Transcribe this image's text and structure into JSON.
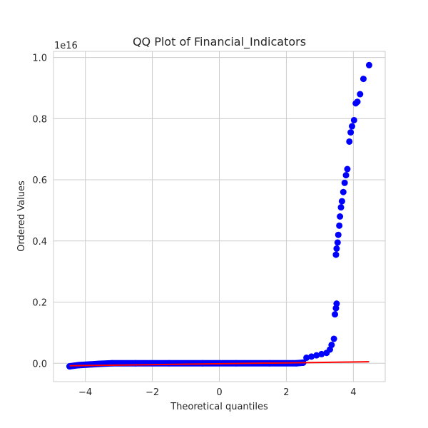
{
  "chart_data": {
    "type": "scatter",
    "title": "QQ Plot of Financial_Indicators",
    "xlabel": "Theoretical quantiles",
    "ylabel": "Ordered Values",
    "y_offset_label": "1e16",
    "xlim": [
      -4.95,
      4.95
    ],
    "ylim": [
      -0.06,
      1.02
    ],
    "x_ticks": [
      -4,
      -2,
      0,
      2,
      4
    ],
    "x_tick_labels": [
      "−4",
      "−2",
      "0",
      "2",
      "4"
    ],
    "y_ticks": [
      0.0,
      0.2,
      0.4,
      0.6,
      0.8,
      1.0
    ],
    "y_tick_labels": [
      "0.0",
      "0.2",
      "0.4",
      "0.6",
      "0.8",
      "1.0"
    ],
    "grid": true,
    "colors": {
      "points": "#0000ff",
      "fit_line": "#ff0000",
      "grid": "#cccccc",
      "spine": "#cccccc"
    },
    "series": [
      {
        "values_style": "markers",
        "points": [
          [
            -4.47,
            -0.01
          ],
          [
            -4.2,
            -0.006
          ],
          [
            -3.9,
            -0.004
          ],
          [
            -3.6,
            -0.002
          ],
          [
            -3.2,
            0.0
          ],
          [
            -2.5,
            0.0
          ],
          [
            -1.5,
            0.0
          ],
          [
            -0.5,
            0.0
          ],
          [
            0.5,
            0.0
          ],
          [
            1.5,
            0.0
          ],
          [
            2.3,
            0.0
          ],
          [
            2.5,
            0.002
          ],
          [
            2.6,
            0.018
          ],
          [
            2.75,
            0.022
          ],
          [
            2.9,
            0.026
          ],
          [
            3.05,
            0.03
          ],
          [
            3.2,
            0.034
          ],
          [
            3.3,
            0.045
          ],
          [
            3.35,
            0.06
          ],
          [
            3.42,
            0.08
          ],
          [
            3.45,
            0.16
          ],
          [
            3.48,
            0.18
          ],
          [
            3.5,
            0.195
          ],
          [
            3.48,
            0.355
          ],
          [
            3.5,
            0.375
          ],
          [
            3.53,
            0.395
          ],
          [
            3.55,
            0.42
          ],
          [
            3.58,
            0.45
          ],
          [
            3.6,
            0.48
          ],
          [
            3.63,
            0.51
          ],
          [
            3.66,
            0.53
          ],
          [
            3.7,
            0.56
          ],
          [
            3.74,
            0.59
          ],
          [
            3.78,
            0.615
          ],
          [
            3.82,
            0.635
          ],
          [
            3.88,
            0.725
          ],
          [
            3.92,
            0.755
          ],
          [
            3.96,
            0.775
          ],
          [
            4.02,
            0.795
          ],
          [
            4.07,
            0.85
          ],
          [
            4.12,
            0.855
          ],
          [
            4.2,
            0.88
          ],
          [
            4.3,
            0.93
          ],
          [
            4.47,
            0.975
          ]
        ]
      },
      {
        "values_style": "line",
        "points": [
          [
            -4.47,
            -0.008
          ],
          [
            4.47,
            0.005
          ]
        ]
      }
    ]
  }
}
